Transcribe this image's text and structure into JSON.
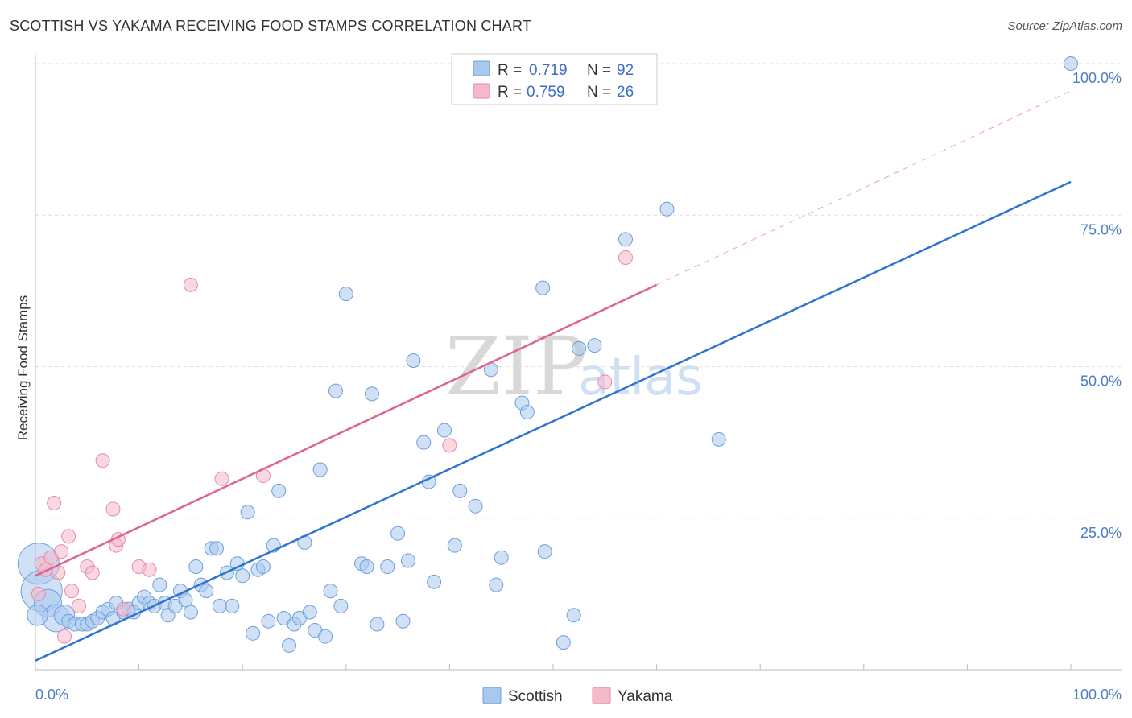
{
  "title": "SCOTTISH VS YAKAMA RECEIVING FOOD STAMPS CORRELATION CHART",
  "source": "Source: ZipAtlas.com",
  "watermark": {
    "zip": "ZIP",
    "atlas": "atlas"
  },
  "colors": {
    "scottish_fill": "#a9c8ee",
    "scottish_stroke": "#6e9fdb",
    "scottish_line": "#2f74d0",
    "yakama_fill": "#f6b8cb",
    "yakama_stroke": "#e88aa8",
    "yakama_line": "#e0628e",
    "grid": "#dddddd",
    "tick_text": "#4a7cc7"
  },
  "legend": {
    "rows": [
      {
        "r_label": "R =",
        "r_value": "0.719",
        "n_label": "N =",
        "n_value": "92"
      },
      {
        "r_label": "R =",
        "r_value": "0.759",
        "n_label": "N =",
        "n_value": "26"
      }
    ]
  },
  "bottom_legend": [
    "Scottish",
    "Yakama"
  ],
  "chart_data": {
    "type": "scatter",
    "title": "SCOTTISH VS YAKAMA RECEIVING FOOD STAMPS CORRELATION CHART",
    "xlabel": "",
    "ylabel": "Receiving Food Stamps",
    "xlim": [
      0,
      100
    ],
    "ylim": [
      0,
      100
    ],
    "x_tick_labels": [
      "0.0%",
      "100.0%"
    ],
    "y_tick_labels": [
      "25.0%",
      "50.0%",
      "75.0%",
      "100.0%"
    ],
    "y_ticks": [
      25,
      50,
      75,
      100
    ],
    "grid": true,
    "series": [
      {
        "name": "Scottish",
        "r": 0.719,
        "n": 92,
        "trend": {
          "x": [
            0,
            100
          ],
          "y": [
            1.5,
            80.5
          ],
          "style": "solid"
        },
        "points": [
          {
            "x": 0.3,
            "y": 17.5,
            "s": 3
          },
          {
            "x": 0.6,
            "y": 13,
            "s": 3
          },
          {
            "x": 1.2,
            "y": 11,
            "s": 2
          },
          {
            "x": 2,
            "y": 8.5,
            "s": 2
          },
          {
            "x": 2.8,
            "y": 9,
            "s": 1.5
          },
          {
            "x": 3.2,
            "y": 8,
            "s": 1
          },
          {
            "x": 3.8,
            "y": 7.5,
            "s": 1
          },
          {
            "x": 4.5,
            "y": 7.5,
            "s": 1
          },
          {
            "x": 5,
            "y": 7.5,
            "s": 1
          },
          {
            "x": 5.5,
            "y": 8,
            "s": 1
          },
          {
            "x": 6,
            "y": 8.5,
            "s": 1
          },
          {
            "x": 6.5,
            "y": 9.5,
            "s": 1
          },
          {
            "x": 7,
            "y": 10,
            "s": 1
          },
          {
            "x": 7.5,
            "y": 8.5,
            "s": 1
          },
          {
            "x": 7.8,
            "y": 11,
            "s": 1
          },
          {
            "x": 8.5,
            "y": 9.5,
            "s": 1
          },
          {
            "x": 9,
            "y": 10,
            "s": 1
          },
          {
            "x": 9.5,
            "y": 9.5,
            "s": 1
          },
          {
            "x": 10,
            "y": 11,
            "s": 1
          },
          {
            "x": 10.5,
            "y": 12,
            "s": 1
          },
          {
            "x": 11,
            "y": 11,
            "s": 1
          },
          {
            "x": 11.5,
            "y": 10.5,
            "s": 1
          },
          {
            "x": 12,
            "y": 14,
            "s": 1
          },
          {
            "x": 12.5,
            "y": 11,
            "s": 1
          },
          {
            "x": 12.8,
            "y": 9,
            "s": 1
          },
          {
            "x": 13.5,
            "y": 10.5,
            "s": 1
          },
          {
            "x": 14,
            "y": 13,
            "s": 1
          },
          {
            "x": 14.5,
            "y": 11.5,
            "s": 1
          },
          {
            "x": 15,
            "y": 9.5,
            "s": 1
          },
          {
            "x": 15.5,
            "y": 17,
            "s": 1
          },
          {
            "x": 16,
            "y": 14,
            "s": 1
          },
          {
            "x": 16.5,
            "y": 13,
            "s": 1
          },
          {
            "x": 17,
            "y": 20,
            "s": 1
          },
          {
            "x": 17.5,
            "y": 20,
            "s": 1
          },
          {
            "x": 17.8,
            "y": 10.5,
            "s": 1
          },
          {
            "x": 18.5,
            "y": 16,
            "s": 1
          },
          {
            "x": 19,
            "y": 10.5,
            "s": 1
          },
          {
            "x": 19.5,
            "y": 17.5,
            "s": 1
          },
          {
            "x": 20,
            "y": 15.5,
            "s": 1
          },
          {
            "x": 20.5,
            "y": 26,
            "s": 1
          },
          {
            "x": 21,
            "y": 6,
            "s": 1
          },
          {
            "x": 21.5,
            "y": 16.5,
            "s": 1
          },
          {
            "x": 22,
            "y": 17,
            "s": 1
          },
          {
            "x": 22.5,
            "y": 8,
            "s": 1
          },
          {
            "x": 23,
            "y": 20.5,
            "s": 1
          },
          {
            "x": 23.5,
            "y": 29.5,
            "s": 1
          },
          {
            "x": 24,
            "y": 8.5,
            "s": 1
          },
          {
            "x": 24.5,
            "y": 4,
            "s": 1
          },
          {
            "x": 25,
            "y": 7.5,
            "s": 1
          },
          {
            "x": 25.5,
            "y": 8.5,
            "s": 1
          },
          {
            "x": 26,
            "y": 21,
            "s": 1
          },
          {
            "x": 26.5,
            "y": 9.5,
            "s": 1
          },
          {
            "x": 27,
            "y": 6.5,
            "s": 1
          },
          {
            "x": 27.5,
            "y": 33,
            "s": 1
          },
          {
            "x": 28,
            "y": 5.5,
            "s": 1
          },
          {
            "x": 28.5,
            "y": 13,
            "s": 1
          },
          {
            "x": 29,
            "y": 46,
            "s": 1
          },
          {
            "x": 29.5,
            "y": 10.5,
            "s": 1
          },
          {
            "x": 30,
            "y": 62,
            "s": 1
          },
          {
            "x": 31.5,
            "y": 17.5,
            "s": 1
          },
          {
            "x": 32,
            "y": 17,
            "s": 1
          },
          {
            "x": 32.5,
            "y": 45.5,
            "s": 1
          },
          {
            "x": 33,
            "y": 7.5,
            "s": 1
          },
          {
            "x": 34,
            "y": 17,
            "s": 1
          },
          {
            "x": 35,
            "y": 22.5,
            "s": 1
          },
          {
            "x": 35.5,
            "y": 8,
            "s": 1
          },
          {
            "x": 36,
            "y": 18,
            "s": 1
          },
          {
            "x": 36.5,
            "y": 51,
            "s": 1
          },
          {
            "x": 37.5,
            "y": 37.5,
            "s": 1
          },
          {
            "x": 38,
            "y": 31,
            "s": 1
          },
          {
            "x": 38.5,
            "y": 14.5,
            "s": 1
          },
          {
            "x": 39.5,
            "y": 39.5,
            "s": 1
          },
          {
            "x": 40.5,
            "y": 20.5,
            "s": 1
          },
          {
            "x": 41,
            "y": 29.5,
            "s": 1
          },
          {
            "x": 42.5,
            "y": 27,
            "s": 1
          },
          {
            "x": 44,
            "y": 49.5,
            "s": 1
          },
          {
            "x": 44.5,
            "y": 14,
            "s": 1
          },
          {
            "x": 45,
            "y": 18.5,
            "s": 1
          },
          {
            "x": 47,
            "y": 44,
            "s": 1
          },
          {
            "x": 47.5,
            "y": 42.5,
            "s": 1
          },
          {
            "x": 49,
            "y": 63,
            "s": 1
          },
          {
            "x": 49.2,
            "y": 19.5,
            "s": 1
          },
          {
            "x": 51,
            "y": 4.5,
            "s": 1
          },
          {
            "x": 52,
            "y": 9,
            "s": 1
          },
          {
            "x": 52.5,
            "y": 53,
            "s": 1
          },
          {
            "x": 54,
            "y": 53.5,
            "s": 1
          },
          {
            "x": 57,
            "y": 71,
            "s": 1
          },
          {
            "x": 58,
            "y": 100,
            "s": 1
          },
          {
            "x": 61,
            "y": 76,
            "s": 1
          },
          {
            "x": 66,
            "y": 38,
            "s": 1
          },
          {
            "x": 100,
            "y": 100,
            "s": 1
          },
          {
            "x": 0.2,
            "y": 9,
            "s": 1.5
          }
        ]
      },
      {
        "name": "Yakama",
        "r": 0.759,
        "n": 26,
        "trend": {
          "x": [
            0,
            60
          ],
          "y": [
            15.5,
            63.5
          ],
          "style": "solid",
          "extension": {
            "x": [
              60,
              100
            ],
            "y": [
              63.5,
              95.5
            ],
            "style": "dashed"
          }
        },
        "points": [
          {
            "x": 0.3,
            "y": 12.5
          },
          {
            "x": 0.6,
            "y": 17.5
          },
          {
            "x": 1,
            "y": 16.5
          },
          {
            "x": 1.5,
            "y": 18.5
          },
          {
            "x": 1.8,
            "y": 27.5
          },
          {
            "x": 2.2,
            "y": 16
          },
          {
            "x": 2.5,
            "y": 19.5
          },
          {
            "x": 2.8,
            "y": 5.5
          },
          {
            "x": 3.2,
            "y": 22
          },
          {
            "x": 3.5,
            "y": 13
          },
          {
            "x": 4.2,
            "y": 10.5
          },
          {
            "x": 5,
            "y": 17
          },
          {
            "x": 5.5,
            "y": 16
          },
          {
            "x": 6.5,
            "y": 34.5
          },
          {
            "x": 7.5,
            "y": 26.5
          },
          {
            "x": 7.8,
            "y": 20.5
          },
          {
            "x": 8,
            "y": 21.5
          },
          {
            "x": 8.5,
            "y": 10
          },
          {
            "x": 10,
            "y": 17
          },
          {
            "x": 11,
            "y": 16.5
          },
          {
            "x": 15,
            "y": 63.5
          },
          {
            "x": 18,
            "y": 31.5
          },
          {
            "x": 22,
            "y": 32
          },
          {
            "x": 40,
            "y": 37
          },
          {
            "x": 55,
            "y": 47.5
          },
          {
            "x": 57,
            "y": 68
          }
        ]
      }
    ]
  }
}
